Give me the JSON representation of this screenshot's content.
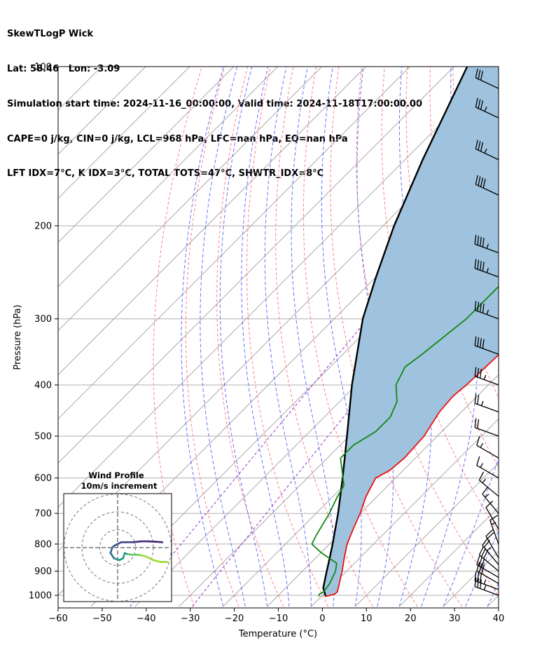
{
  "header": {
    "line1": "SkewTLogP Wick",
    "line2": "Lat: 58.46   Lon: -3.09",
    "line3": "Simulation start time: 2024-11-16_00:00:00, Valid time: 2024-11-18T17:00:00.00",
    "line4": "CAPE=0 j/kg, CIN=0 j/kg, LCL=968 hPa, LFC=nan hPa, EQ=nan hPa",
    "line5": "LFT IDX=7°C, K IDX=3°C, TOTAL TOTS=47°C, SHWTR_IDX=8°C"
  },
  "chart_data": {
    "type": "skewt-logp",
    "xlabel": "Temperature (°C)",
    "ylabel": "Pressure (hPa)",
    "xlim": [
      -60,
      40
    ],
    "ylim": [
      1050,
      100
    ],
    "x_ticks": [
      -60,
      -50,
      -40,
      -30,
      -20,
      -10,
      0,
      10,
      20,
      30,
      40
    ],
    "x_tick_labels": [
      "−60",
      "−50",
      "−40",
      "−30",
      "−20",
      "−10",
      "0",
      "10",
      "20",
      "30",
      "40"
    ],
    "y_ticks": [
      1000,
      900,
      800,
      700,
      600,
      500,
      400,
      300,
      200,
      100
    ],
    "y_tick_labels": [
      "1000",
      "900",
      "800",
      "700",
      "600",
      "500",
      "400",
      "300",
      "200",
      "100"
    ],
    "grid": true,
    "colors": {
      "temperature": "#ee1111",
      "dewpoint": "#118811",
      "parcel": "#000000",
      "shade": "#9fc3de",
      "dry_adiabat": "#ff6a6a",
      "moist_adiabat": "#4d5cff",
      "mixing_ratio": "#9933cc",
      "isotherm": "#999999"
    },
    "temperature_profile": [
      [
        1005,
        1.0
      ],
      [
        995,
        2.5
      ],
      [
        985,
        2.6
      ],
      [
        970,
        2.0
      ],
      [
        900,
        -1.0
      ],
      [
        850,
        -3.5
      ],
      [
        800,
        -6.0
      ],
      [
        750,
        -8.0
      ],
      [
        700,
        -10.0
      ],
      [
        650,
        -12.5
      ],
      [
        600,
        -14.5
      ],
      [
        580,
        -13.0
      ],
      [
        550,
        -12.5
      ],
      [
        500,
        -13.0
      ],
      [
        450,
        -15.0
      ],
      [
        420,
        -15.5
      ],
      [
        400,
        -15.0
      ],
      [
        350,
        -14.5
      ],
      [
        300,
        -14.5
      ],
      [
        270,
        -14.0
      ],
      [
        250,
        -12.0
      ],
      [
        230,
        -9.0
      ],
      [
        210,
        -5.5
      ],
      [
        200,
        -4.0
      ],
      [
        180,
        -3.0
      ],
      [
        160,
        -2.0
      ],
      [
        140,
        -1.0
      ],
      [
        120,
        0.5
      ],
      [
        100,
        2.0
      ]
    ],
    "dewpoint_profile": [
      [
        1005,
        -0.5
      ],
      [
        995,
        -1.0
      ],
      [
        985,
        -0.5
      ],
      [
        950,
        -1.0
      ],
      [
        900,
        -2.5
      ],
      [
        870,
        -4.0
      ],
      [
        830,
        -10.0
      ],
      [
        800,
        -14.0
      ],
      [
        770,
        -15.0
      ],
      [
        700,
        -17.0
      ],
      [
        650,
        -19.0
      ],
      [
        620,
        -20.0
      ],
      [
        550,
        -27.0
      ],
      [
        520,
        -27.0
      ],
      [
        490,
        -25.0
      ],
      [
        460,
        -25.0
      ],
      [
        430,
        -27.0
      ],
      [
        400,
        -31.0
      ],
      [
        370,
        -33.0
      ],
      [
        350,
        -32.0
      ],
      [
        300,
        -30.0
      ],
      [
        260,
        -30.0
      ],
      [
        230,
        -33.0
      ],
      [
        200,
        -35.0
      ],
      [
        185,
        -36.0
      ],
      [
        170,
        -36.0
      ],
      [
        150,
        -34.0
      ],
      [
        130,
        -32.0
      ],
      [
        115,
        -30.0
      ],
      [
        100,
        -28.0
      ]
    ],
    "parcel_profile": [
      [
        1005,
        1.0
      ],
      [
        968,
        -1.5
      ],
      [
        900,
        -4.5
      ],
      [
        850,
        -6.8
      ],
      [
        800,
        -9.3
      ],
      [
        700,
        -15.0
      ],
      [
        600,
        -22.0
      ],
      [
        500,
        -30.5
      ],
      [
        400,
        -41.0
      ],
      [
        300,
        -53.5
      ],
      [
        250,
        -60.0
      ],
      [
        200,
        -67.5
      ],
      [
        150,
        -76.0
      ],
      [
        100,
        -87.0
      ]
    ],
    "wind_barbs": [
      {
        "p": 1000,
        "speed_kt": 35,
        "dir": 290
      },
      {
        "p": 975,
        "speed_kt": 35,
        "dir": 290
      },
      {
        "p": 950,
        "speed_kt": 30,
        "dir": 300
      },
      {
        "p": 925,
        "speed_kt": 30,
        "dir": 300
      },
      {
        "p": 900,
        "speed_kt": 30,
        "dir": 310
      },
      {
        "p": 875,
        "speed_kt": 25,
        "dir": 320
      },
      {
        "p": 850,
        "speed_kt": 20,
        "dir": 330
      },
      {
        "p": 800,
        "speed_kt": 15,
        "dir": 340
      },
      {
        "p": 750,
        "speed_kt": 10,
        "dir": 330
      },
      {
        "p": 700,
        "speed_kt": 15,
        "dir": 320
      },
      {
        "p": 650,
        "speed_kt": 15,
        "dir": 310
      },
      {
        "p": 600,
        "speed_kt": 15,
        "dir": 300
      },
      {
        "p": 550,
        "speed_kt": 15,
        "dir": 300
      },
      {
        "p": 500,
        "speed_kt": 20,
        "dir": 290
      },
      {
        "p": 450,
        "speed_kt": 25,
        "dir": 290
      },
      {
        "p": 400,
        "speed_kt": 35,
        "dir": 290
      },
      {
        "p": 350,
        "speed_kt": 40,
        "dir": 290
      },
      {
        "p": 300,
        "speed_kt": 45,
        "dir": 290
      },
      {
        "p": 250,
        "speed_kt": 45,
        "dir": 290
      },
      {
        "p": 225,
        "speed_kt": 45,
        "dir": 290
      },
      {
        "p": 175,
        "speed_kt": 40,
        "dir": 295
      },
      {
        "p": 150,
        "speed_kt": 35,
        "dir": 295
      },
      {
        "p": 125,
        "speed_kt": 35,
        "dir": 295
      },
      {
        "p": 110,
        "speed_kt": 30,
        "dir": 295
      }
    ],
    "hodograph": {
      "title": "Wind Profile",
      "subtitle": "10m/s increment",
      "rings_ms": [
        10,
        20,
        30
      ],
      "points_uv": [
        [
          28,
          -8
        ],
        [
          24,
          -8
        ],
        [
          20,
          -7
        ],
        [
          16,
          -5
        ],
        [
          12,
          -4
        ],
        [
          8,
          -4
        ],
        [
          5,
          -3.5
        ],
        [
          4,
          -3
        ],
        [
          3,
          -6
        ],
        [
          1,
          -7
        ],
        [
          -2,
          -6
        ],
        [
          -4,
          -3
        ],
        [
          -3,
          0
        ],
        [
          -2,
          1
        ],
        [
          0,
          2
        ],
        [
          2,
          3
        ],
        [
          5,
          3
        ],
        [
          9,
          3
        ],
        [
          13,
          3.5
        ],
        [
          17,
          3.5
        ],
        [
          21,
          3.3
        ],
        [
          25,
          3
        ]
      ]
    }
  }
}
